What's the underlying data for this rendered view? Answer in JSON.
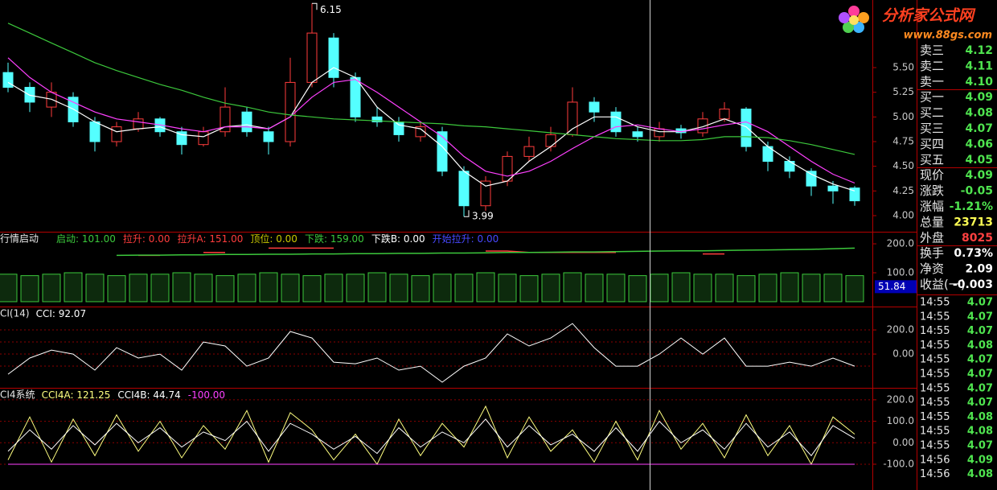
{
  "chart_data": [
    {
      "type": "candlestick",
      "open": [
        5.45,
        5.3,
        5.1,
        5.2,
        4.95,
        4.75,
        4.88,
        4.98,
        4.85,
        4.72,
        4.85,
        5.05,
        4.85,
        4.75,
        5.35,
        5.8,
        5.4,
        5.0,
        4.95,
        4.8,
        4.85,
        4.45,
        4.1,
        4.35,
        4.6,
        4.7,
        4.82,
        5.15,
        5.05,
        4.85,
        4.8,
        4.88,
        4.84,
        4.98,
        5.08,
        4.7,
        4.55,
        4.45,
        4.3,
        4.28
      ],
      "high": [
        5.55,
        5.35,
        5.35,
        5.25,
        5.0,
        4.95,
        5.05,
        5.0,
        4.9,
        4.9,
        5.3,
        5.1,
        4.9,
        5.6,
        6.15,
        5.85,
        5.45,
        5.1,
        5.0,
        4.95,
        4.9,
        4.5,
        4.4,
        4.65,
        4.8,
        4.9,
        5.3,
        5.2,
        5.1,
        4.9,
        4.95,
        4.92,
        5.05,
        5.15,
        5.1,
        4.75,
        4.6,
        4.48,
        4.35,
        4.3
      ],
      "low": [
        5.25,
        5.05,
        5.0,
        4.9,
        4.65,
        4.7,
        4.85,
        4.8,
        4.62,
        4.7,
        4.8,
        4.8,
        4.62,
        4.7,
        5.3,
        5.3,
        4.95,
        4.9,
        4.75,
        4.75,
        4.4,
        3.99,
        4.05,
        4.3,
        4.55,
        4.65,
        4.8,
        4.95,
        4.8,
        4.75,
        4.75,
        4.78,
        4.8,
        4.95,
        4.65,
        4.45,
        4.38,
        4.2,
        4.12,
        4.1
      ],
      "close": [
        5.3,
        5.15,
        5.25,
        4.95,
        4.75,
        4.9,
        4.98,
        4.85,
        4.72,
        4.85,
        5.1,
        4.85,
        4.75,
        5.35,
        5.85,
        5.4,
        5.0,
        4.95,
        4.82,
        4.9,
        4.45,
        4.1,
        4.35,
        4.6,
        4.7,
        4.82,
        5.15,
        5.05,
        4.85,
        4.8,
        4.88,
        4.84,
        4.98,
        5.08,
        4.7,
        4.55,
        4.45,
        4.3,
        4.25,
        4.15
      ],
      "up_color": "#ff3c3c",
      "down_color": "#54ffff",
      "series": [
        {
          "color": "#ffffff",
          "values": [
            5.35,
            5.22,
            5.18,
            5.08,
            4.95,
            4.85,
            4.88,
            4.9,
            4.82,
            4.8,
            4.9,
            4.92,
            4.88,
            5.0,
            5.35,
            5.5,
            5.4,
            5.1,
            4.92,
            4.88,
            4.7,
            4.45,
            4.3,
            4.35,
            4.55,
            4.7,
            4.88,
            5.0,
            5.0,
            4.9,
            4.85,
            4.85,
            4.9,
            4.98,
            4.9,
            4.7,
            4.55,
            4.42,
            4.32,
            4.25
          ]
        },
        {
          "color": "#ff40ff",
          "values": [
            5.6,
            5.4,
            5.25,
            5.15,
            5.05,
            4.98,
            4.95,
            4.92,
            4.88,
            4.85,
            4.9,
            4.9,
            4.88,
            5.0,
            5.2,
            5.35,
            5.38,
            5.25,
            5.1,
            4.95,
            4.8,
            4.6,
            4.45,
            4.4,
            4.45,
            4.55,
            4.68,
            4.8,
            4.9,
            4.92,
            4.88,
            4.85,
            4.88,
            4.92,
            4.95,
            4.85,
            4.7,
            4.55,
            4.42,
            4.33
          ]
        },
        {
          "color": "#3cc83c",
          "values": [
            5.95,
            5.85,
            5.75,
            5.65,
            5.55,
            5.47,
            5.4,
            5.33,
            5.27,
            5.2,
            5.14,
            5.1,
            5.05,
            5.02,
            5.0,
            4.98,
            4.97,
            4.96,
            4.95,
            4.94,
            4.93,
            4.91,
            4.9,
            4.88,
            4.86,
            4.84,
            4.82,
            4.8,
            4.78,
            4.77,
            4.76,
            4.76,
            4.77,
            4.8,
            4.8,
            4.79,
            4.76,
            4.72,
            4.67,
            4.62
          ]
        }
      ],
      "ylim": [
        3.845,
        6.185
      ],
      "yticks": [
        {
          "value": 4,
          "label": "4.00"
        },
        {
          "value": 4.25,
          "label": "4.25"
        },
        {
          "value": 4.5,
          "label": "4.50"
        },
        {
          "value": 4.75,
          "label": "4.75"
        },
        {
          "value": 5,
          "label": "5.00"
        },
        {
          "value": 5.25,
          "label": "5.25"
        },
        {
          "value": 5.5,
          "label": "5.50"
        }
      ]
    },
    {
      "type": "bar",
      "title": "行情启动",
      "series": [
        {
          "name": "启动",
          "color": "#3cc83c",
          "label": "101.00",
          "type": "bar",
          "values": [
            95,
            90,
            95,
            100,
            95,
            90,
            95,
            95,
            100,
            95,
            90,
            95,
            100,
            95,
            90,
            95,
            95,
            100,
            95,
            90,
            95,
            95,
            100,
            95,
            90,
            95,
            100,
            95,
            95,
            90,
            95,
            100,
            95,
            95,
            90,
            95,
            100,
            95,
            95,
            90
          ]
        },
        {
          "name": "拉升",
          "color": "#ff3c3c",
          "label": "0.00"
        },
        {
          "name": "拉升A",
          "color": "#ff3c3c",
          "label": "151.00",
          "type": "line",
          "values": [
            null,
            null,
            null,
            null,
            null,
            null,
            160,
            160,
            null,
            170,
            170,
            null,
            185,
            185,
            185,
            185,
            null,
            null,
            null,
            null,
            null,
            null,
            175,
            175,
            170,
            170,
            170,
            170,
            170,
            null,
            165,
            null,
            165,
            165,
            null,
            null,
            null,
            null,
            null,
            null
          ]
        },
        {
          "name": "顶位",
          "color": "#c8c800",
          "label": "0.00"
        },
        {
          "name": "下跌",
          "color": "#3cc83c",
          "label": "159.00",
          "type": "line",
          "values": [
            null,
            null,
            null,
            null,
            null,
            160,
            161,
            161,
            162,
            162,
            163,
            163,
            164,
            164,
            165,
            165,
            166,
            166,
            167,
            167,
            168,
            168,
            169,
            170,
            170,
            171,
            172,
            172,
            173,
            174,
            175,
            176,
            176,
            177,
            178,
            179,
            180,
            181,
            183,
            185
          ]
        },
        {
          "name": "下跌B",
          "color": "#ffffff",
          "label": "0.00"
        },
        {
          "name": "开始拉升",
          "color": "#4848ff",
          "label": "0.00"
        }
      ],
      "marker": 51.84,
      "ylim": [
        -14,
        239
      ],
      "yticks": [
        {
          "value": 200,
          "label": "200.0"
        },
        {
          "value": 100,
          "label": "100.0"
        }
      ]
    },
    {
      "type": "line",
      "title": "CI(14)",
      "series": [
        {
          "name": "CCI",
          "color": "#ffffff",
          "label": "92.07",
          "values": [
            -167,
            -33,
            33,
            0,
            -133,
            53,
            -33,
            0,
            -133,
            100,
            67,
            -100,
            -33,
            187,
            133,
            -67,
            -80,
            -33,
            -133,
            -100,
            -233,
            -100,
            -33,
            167,
            67,
            133,
            253,
            53,
            -100,
            -100,
            0,
            133,
            0,
            133,
            -100,
            -100,
            -67,
            -100,
            -33,
            -100
          ]
        }
      ],
      "grid": true,
      "grid_levels": [
        100,
        -100
      ],
      "ylim": [
        -273,
        387
      ],
      "yticks": [
        {
          "value": 200,
          "label": "200.0"
        },
        {
          "value": 0,
          "label": "0.00"
        }
      ]
    },
    {
      "type": "line",
      "title": "CI4系统",
      "series": [
        {
          "name": "CCI4A",
          "color": "#ffff80",
          "label": "121.25",
          "values": [
            -80,
            120,
            -90,
            110,
            -60,
            130,
            -40,
            100,
            -70,
            80,
            -30,
            150,
            -90,
            140,
            60,
            -80,
            40,
            -100,
            110,
            -60,
            90,
            -20,
            170,
            -70,
            120,
            -40,
            60,
            -90,
            100,
            -80,
            150,
            -30,
            90,
            -70,
            130,
            -60,
            80,
            -100,
            120,
            40
          ]
        },
        {
          "name": "CCI4B",
          "color": "#ffffff",
          "label": "44.74",
          "values": [
            -40,
            60,
            -30,
            80,
            -10,
            90,
            0,
            70,
            -20,
            50,
            10,
            100,
            -40,
            90,
            40,
            -30,
            30,
            -50,
            70,
            -20,
            50,
            0,
            110,
            -20,
            80,
            -10,
            40,
            -40,
            70,
            -40,
            100,
            0,
            60,
            -30,
            90,
            -20,
            50,
            -60,
            80,
            20
          ]
        },
        {
          "color": "#ff40ff",
          "label": "-100.00",
          "values": [
            -100,
            -100,
            -100,
            -100,
            -100,
            -100,
            -100,
            -100,
            -100,
            -100,
            -100,
            -100,
            -100,
            -100,
            -100,
            -100,
            -100,
            -100,
            -100,
            -100,
            -100,
            -100,
            -100,
            -100,
            -100,
            -100,
            -100,
            -100,
            -100,
            -100,
            -100,
            -100,
            -100,
            -100,
            -100,
            -100,
            -100,
            -100,
            -100,
            -100
          ]
        }
      ],
      "grid": true,
      "ylim": [
        -220,
        252
      ],
      "yticks": [
        {
          "value": 200,
          "label": "200.0"
        },
        {
          "value": 100,
          "label": "100.0"
        },
        {
          "value": 0,
          "label": "0.00"
        },
        {
          "value": -100,
          "label": "-100.0"
        }
      ]
    }
  ],
  "logo": {
    "name": "分析家公式网",
    "url": "www.88gs.com"
  },
  "quote_panel": {
    "rows": [
      {
        "label": "卖三",
        "value": "4.12",
        "color": "#4fe44f"
      },
      {
        "label": "卖二",
        "value": "4.11",
        "color": "#4fe44f"
      },
      {
        "label": "卖一",
        "value": "4.10",
        "color": "#4fe44f"
      },
      {
        "label": "买一",
        "value": "4.09",
        "color": "#4fe44f"
      },
      {
        "label": "买二",
        "value": "4.08",
        "color": "#4fe44f"
      },
      {
        "label": "买三",
        "value": "4.07",
        "color": "#4fe44f"
      },
      {
        "label": "买四",
        "value": "4.06",
        "color": "#4fe44f"
      },
      {
        "label": "买五",
        "value": "4.05",
        "color": "#4fe44f"
      },
      {
        "label": "现价",
        "value": "4.09",
        "color": "#4fe44f"
      },
      {
        "label": "涨跌",
        "value": "-0.05",
        "color": "#4fe44f"
      },
      {
        "label": "涨幅",
        "value": "-1.21%",
        "color": "#4fe44f"
      },
      {
        "label": "总量",
        "value": "23713",
        "color": "#ffff54"
      },
      {
        "label": "外盘",
        "value": "8025",
        "color": "#ff4040"
      },
      {
        "label": "换手",
        "value": "0.73%",
        "color": "#ffffff"
      },
      {
        "label": "净资",
        "value": "2.09",
        "color": "#ffffff"
      },
      {
        "label": "收益(一)",
        "value": "-0.003",
        "color": "#ffffff"
      }
    ],
    "ticks": [
      {
        "time": "14:55",
        "price": "4.07"
      },
      {
        "time": "14:55",
        "price": "4.07"
      },
      {
        "time": "14:55",
        "price": "4.07"
      },
      {
        "time": "14:55",
        "price": "4.08"
      },
      {
        "time": "14:55",
        "price": "4.07"
      },
      {
        "time": "14:55",
        "price": "4.07"
      },
      {
        "time": "14:55",
        "price": "4.07"
      },
      {
        "time": "14:55",
        "price": "4.07"
      },
      {
        "time": "14:55",
        "price": "4.08"
      },
      {
        "time": "14:55",
        "price": "4.08"
      },
      {
        "time": "14:55",
        "price": "4.07"
      },
      {
        "time": "14:56",
        "price": "4.09"
      },
      {
        "time": "14:56",
        "price": "4.08"
      }
    ]
  }
}
